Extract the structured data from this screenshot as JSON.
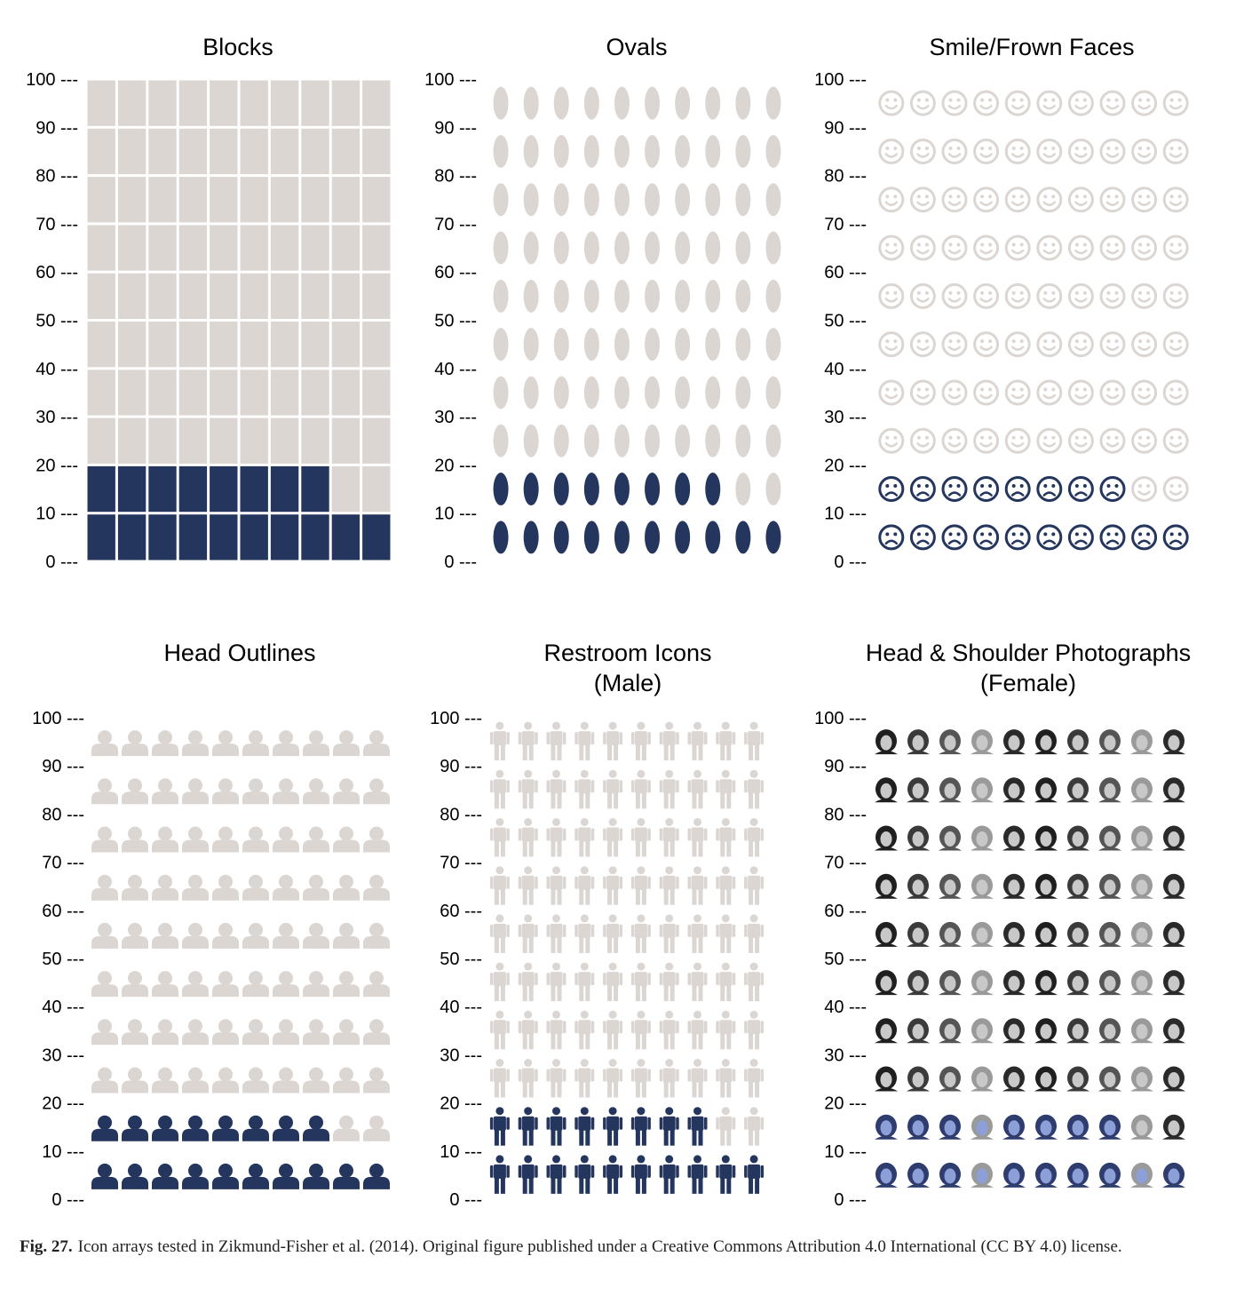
{
  "colors": {
    "filled": "#25365e",
    "empty": "#dcd6d3"
  },
  "caption": {
    "label": "Fig. 27.",
    "text": "Icon arrays tested in Zikmund-Fisher et al. (2014). Original figure published under a Creative Commons Attribution 4.0 International (CC BY 4.0) license."
  },
  "chart_data": [
    {
      "type": "icon-array",
      "icon": "block",
      "title": [
        "Blocks"
      ],
      "ylim": [
        0,
        100
      ],
      "yticks": [
        "0 ---",
        "10 ---",
        "20 ---",
        "30 ---",
        "40 ---",
        "50 ---",
        "60 ---",
        "70 ---",
        "80 ---",
        "90 ---",
        "100 ---"
      ],
      "rows": 10,
      "cols": 10,
      "filled_count": 18,
      "total": 100
    },
    {
      "type": "icon-array",
      "icon": "oval",
      "title": [
        "Ovals"
      ],
      "ylim": [
        0,
        100
      ],
      "yticks": [
        "0 ---",
        "10 ---",
        "20 ---",
        "30 ---",
        "40 ---",
        "50 ---",
        "60 ---",
        "70 ---",
        "80 ---",
        "90 ---",
        "100 ---"
      ],
      "rows": 10,
      "cols": 10,
      "filled_count": 18,
      "total": 100
    },
    {
      "type": "icon-array",
      "icon": "smile-frown-face",
      "title": [
        "Smile/Frown Faces"
      ],
      "ylim": [
        0,
        100
      ],
      "yticks": [
        "0 ---",
        "10 ---",
        "20 ---",
        "30 ---",
        "40 ---",
        "50 ---",
        "60 ---",
        "70 ---",
        "80 ---",
        "90 ---",
        "100 ---"
      ],
      "rows": 10,
      "cols": 10,
      "filled_count": 18,
      "total": 100
    },
    {
      "type": "icon-array",
      "icon": "head-outline",
      "title": [
        "Head Outlines"
      ],
      "ylim": [
        0,
        100
      ],
      "yticks": [
        "0 ---",
        "10 ---",
        "20 ---",
        "30 ---",
        "40 ---",
        "50 ---",
        "60 ---",
        "70 ---",
        "80 ---",
        "90 ---",
        "100 ---"
      ],
      "rows": 10,
      "cols": 10,
      "filled_count": 18,
      "total": 100
    },
    {
      "type": "icon-array",
      "icon": "restroom-male",
      "title": [
        "Restroom Icons",
        "(Male)"
      ],
      "ylim": [
        0,
        100
      ],
      "yticks": [
        "0 ---",
        "10 ---",
        "20 ---",
        "30 ---",
        "40 ---",
        "50 ---",
        "60 ---",
        "70 ---",
        "80 ---",
        "90 ---",
        "100 ---"
      ],
      "rows": 10,
      "cols": 10,
      "filled_count": 18,
      "total": 100
    },
    {
      "type": "icon-array",
      "icon": "head-shoulder-photo",
      "title": [
        "Head & Shoulder Photographs",
        "(Female)"
      ],
      "ylim": [
        0,
        100
      ],
      "yticks": [
        "0 ---",
        "10 ---",
        "20 ---",
        "30 ---",
        "40 ---",
        "50 ---",
        "60 ---",
        "70 ---",
        "80 ---",
        "90 ---",
        "100 ---"
      ],
      "rows": 10,
      "cols": 10,
      "filled_count": 18,
      "total": 100
    }
  ]
}
